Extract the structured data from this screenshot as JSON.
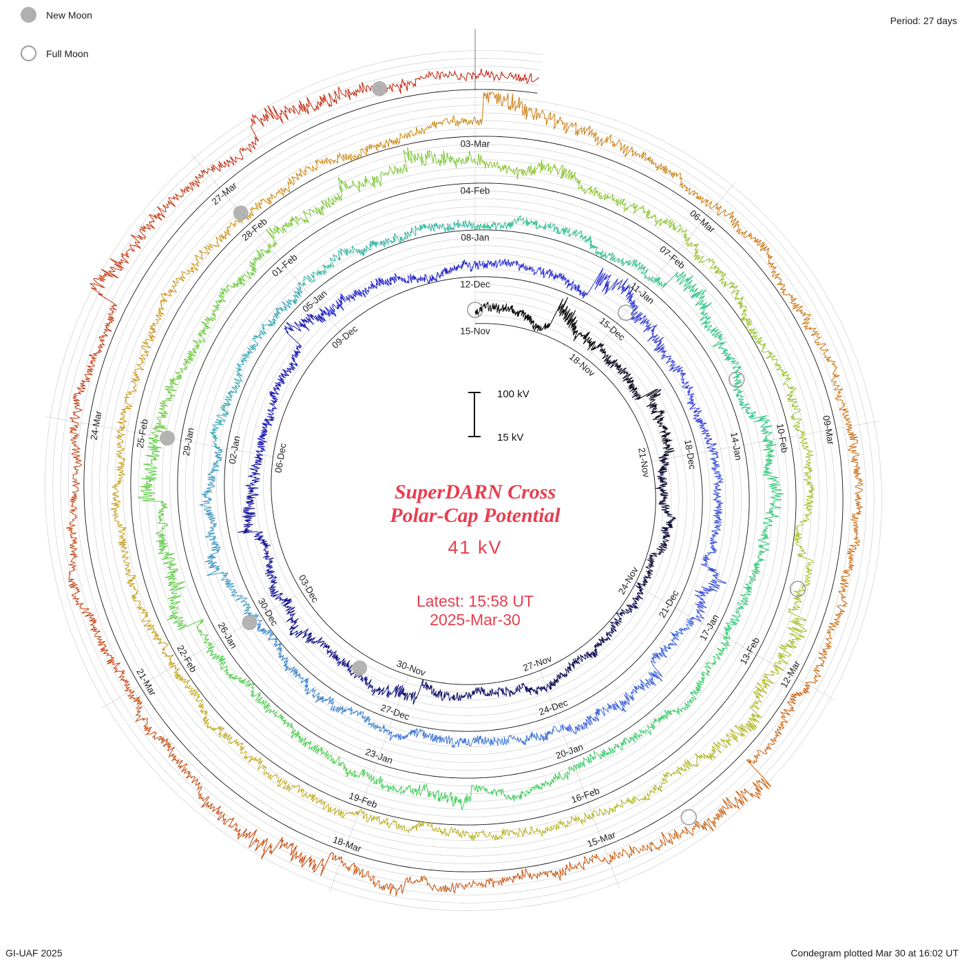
{
  "legend": {
    "new_moon": "New Moon",
    "full_moon": "Full Moon"
  },
  "header": {
    "period": "Period: 27 days"
  },
  "footer": {
    "credit": "GI-UAF 2025",
    "plotted": "Condegram plotted Mar 30 at 16:02 UT"
  },
  "center": {
    "title_line1": "SuperDARN Cross",
    "title_line2": "Polar-Cap Potential",
    "value": "41 kV",
    "latest_line1": "Latest: 15:58 UT",
    "latest_line2": "2025-Mar-30",
    "scale_top": "100 kV",
    "scale_bottom": "15 kV"
  },
  "chart_data": {
    "type": "line",
    "title": "SuperDARN Cross Polar-Cap Potential condegram",
    "units": "kV",
    "value_range": [
      15,
      100
    ],
    "period_days": 27,
    "start_date": "2024-11-15",
    "end_day": 135.665,
    "latest_value_kv": 41,
    "latest_time": "15:58 UT 2025-Mar-30",
    "gridline_kv": [
      30,
      45,
      60,
      75,
      90
    ],
    "label_step_days": 3,
    "angle_mapping": "one revolution = 27 days, clockwise, day boundary at top",
    "date_labels": [
      "15-Nov",
      "18-Nov",
      "21-Nov",
      "24-Nov",
      "27-Nov",
      "30-Nov",
      "03-Dec",
      "06-Dec",
      "09-Dec",
      "12-Dec",
      "15-Dec",
      "18-Dec",
      "21-Dec",
      "24-Dec",
      "27-Dec",
      "30-Dec",
      "02-Jan",
      "05-Jan",
      "08-Jan",
      "11-Jan",
      "14-Jan",
      "17-Jan",
      "20-Jan",
      "23-Jan",
      "26-Jan",
      "29-Jan",
      "01-Feb",
      "04-Feb",
      "07-Feb",
      "10-Feb",
      "13-Feb",
      "16-Feb",
      "19-Feb",
      "22-Feb",
      "25-Feb",
      "28-Feb",
      "03-Mar",
      "06-Mar",
      "09-Mar",
      "12-Mar",
      "15-Mar",
      "18-Mar",
      "21-Mar",
      "24-Mar",
      "27-Mar"
    ],
    "segment_colors": [
      "#050505",
      "#08081c",
      "#0a0a33",
      "#0c0c4d",
      "#0e0e66",
      "#101080",
      "#14149a",
      "#1a1ab3",
      "#2222c4",
      "#2a2ecf",
      "#333dd6",
      "#384fd9",
      "#3c62da",
      "#3e74d6",
      "#3e86cd",
      "#3b97c0",
      "#37a6b1",
      "#33b3a1",
      "#2fbd92",
      "#2cc382",
      "#2cc873",
      "#31ca64",
      "#3bcb56",
      "#49cb4a",
      "#59ca40",
      "#69c938",
      "#7ac631",
      "#89c32b",
      "#97bf26",
      "#a4bb21",
      "#afb51c",
      "#b8ae17",
      "#bfa513",
      "#c49b0f",
      "#c8900c",
      "#ca8509",
      "#cb7a07",
      "#cb6f06",
      "#ca6405",
      "#c85904",
      "#c64e04",
      "#c44304",
      "#c23804",
      "#c02d05",
      "#be2206",
      "#bc1808"
    ],
    "new_moon_days": [
      16,
      45,
      75,
      105,
      134
    ],
    "full_moon_days": [
      0,
      30,
      59,
      89,
      119
    ],
    "moon_marker_color": "#b0b0b0",
    "grid_color": "#c6c6c6",
    "baseline_color": "#111111",
    "accent_red": "#e73e4e",
    "noise_seed": 20250330,
    "samples_per_day": 96
  }
}
